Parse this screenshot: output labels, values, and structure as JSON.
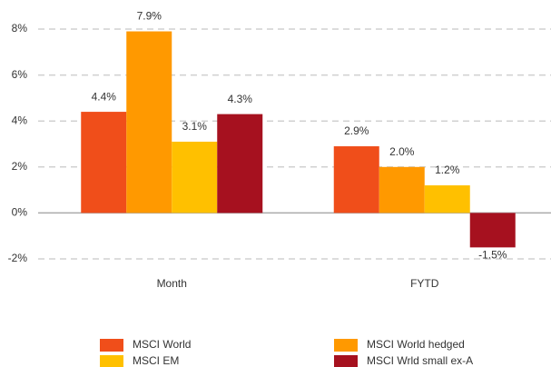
{
  "chart_data": {
    "type": "bar",
    "categories": [
      "Month",
      "FYTD"
    ],
    "series": [
      {
        "name": "MSCI World",
        "color": "#f04e1a",
        "values": [
          4.4,
          2.9
        ],
        "value_labels": [
          "4.4%",
          "2.9%"
        ]
      },
      {
        "name": "MSCI World hedged",
        "color": "#ff9900",
        "values": [
          7.9,
          2.0
        ],
        "value_labels": [
          "7.9%",
          "2.0%"
        ]
      },
      {
        "name": "MSCI EM",
        "color": "#ffc000",
        "values": [
          3.1,
          1.2
        ],
        "value_labels": [
          "3.1%",
          "1.2%"
        ]
      },
      {
        "name": "MSCI Wrld small ex-A",
        "color": "#a6111f",
        "values": [
          4.3,
          -1.5
        ],
        "value_labels": [
          "4.3%",
          "-1.5%"
        ]
      }
    ],
    "ylim": [
      -2,
      8
    ],
    "yticks": [
      {
        "value": -2,
        "label": "-2%"
      },
      {
        "value": 0,
        "label": "0%"
      },
      {
        "value": 2,
        "label": "2%"
      },
      {
        "value": 4,
        "label": "4%"
      },
      {
        "value": 6,
        "label": "6%"
      },
      {
        "value": 8,
        "label": "8%"
      }
    ],
    "grid": true,
    "legend": "bottom"
  }
}
